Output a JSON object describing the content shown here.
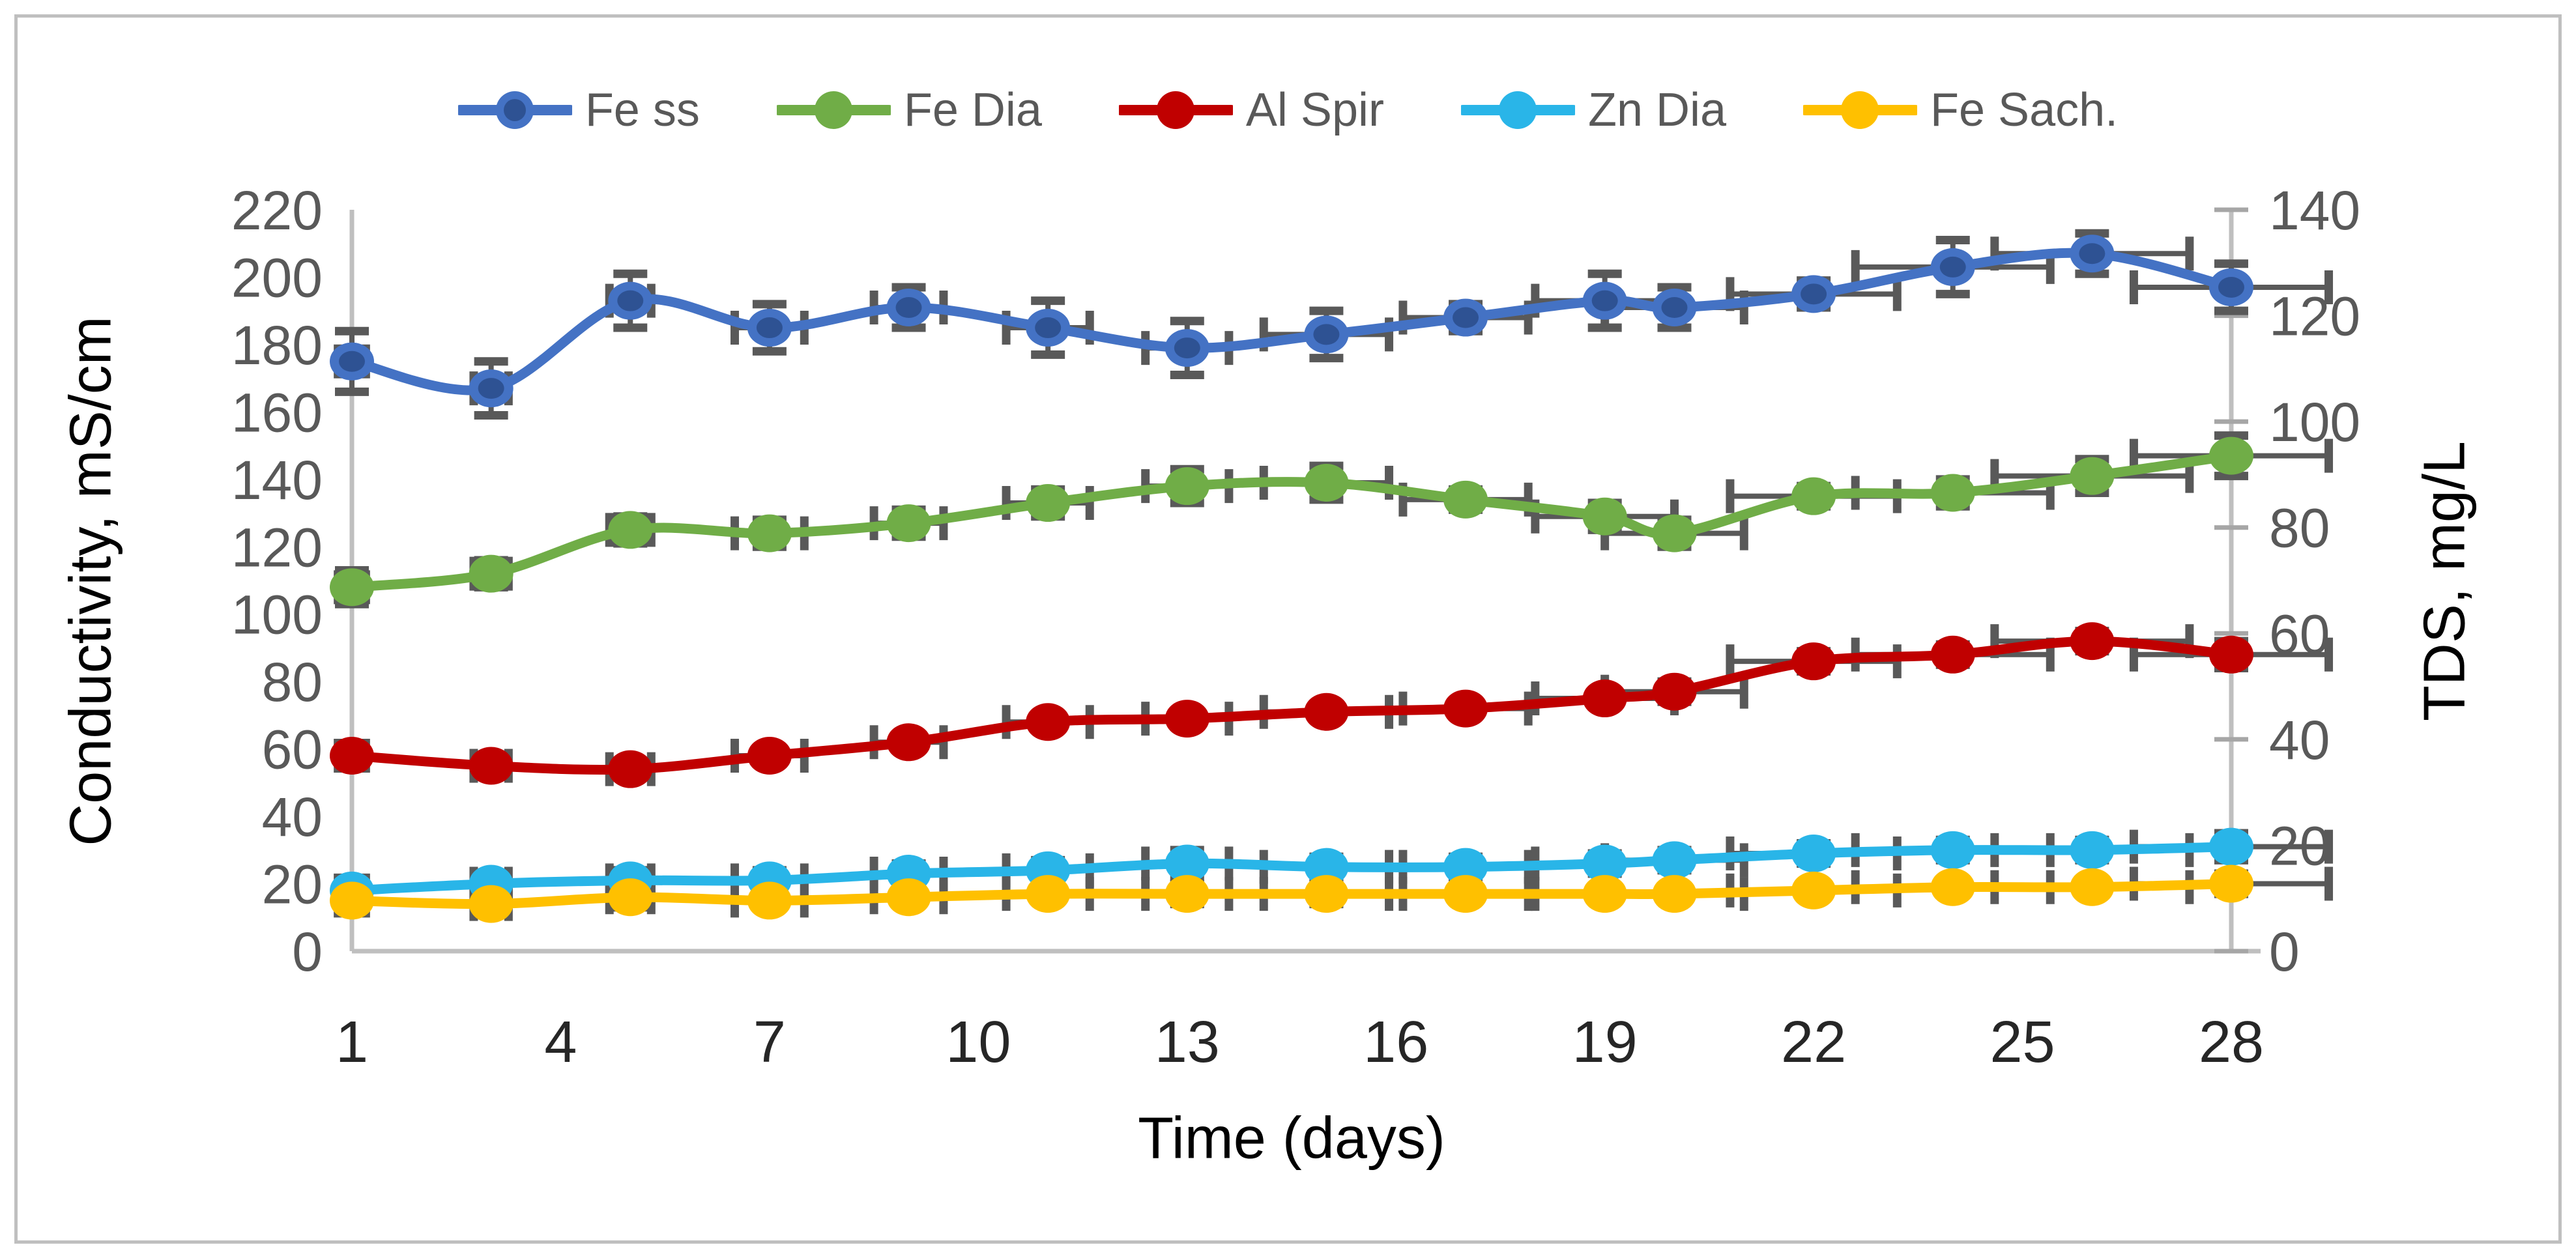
{
  "figure": {
    "background_color": "#ffffff",
    "border_color": "#bfbfbf"
  },
  "chart_data": {
    "type": "line",
    "xlabel": "Time (days)",
    "ylabel_left": "Conductivity, mS/cm",
    "ylabel_right": "TDS, mg/L",
    "xlim": [
      1,
      28
    ],
    "ylim_left": [
      0,
      220
    ],
    "ylim_right": [
      0,
      140
    ],
    "x_ticks": [
      1,
      4,
      7,
      10,
      13,
      16,
      19,
      22,
      25,
      28
    ],
    "y_left_ticks": [
      0,
      20,
      40,
      60,
      80,
      100,
      120,
      140,
      160,
      180,
      200,
      220
    ],
    "y_right_ticks": [
      0,
      20,
      40,
      60,
      80,
      100,
      120,
      140
    ],
    "grid": false,
    "legend_position": "top",
    "x": [
      1,
      3,
      5,
      7,
      9,
      11,
      13,
      15,
      17,
      19,
      20,
      22,
      24,
      26,
      28
    ],
    "xerr_days": [
      0.2,
      0.25,
      0.3,
      0.5,
      0.5,
      0.6,
      0.6,
      0.9,
      0.9,
      1.0,
      1.0,
      1.2,
      1.4,
      1.4,
      1.4
    ],
    "series": [
      {
        "name": "Fe ss",
        "color": "#4472C4",
        "marker_inner": "#2E5293",
        "values": [
          175,
          167,
          193,
          185,
          191,
          185,
          179,
          183,
          188,
          193,
          191,
          195,
          203,
          207,
          197
        ],
        "yerr": [
          9,
          8,
          8,
          7,
          6,
          8,
          8,
          7,
          4,
          8,
          6,
          4,
          8,
          6,
          7
        ]
      },
      {
        "name": "Fe Dia",
        "color": "#70AD47",
        "marker_inner": null,
        "values": [
          108,
          112,
          125,
          124,
          127,
          133,
          138,
          139,
          134,
          129,
          124,
          135,
          136,
          141,
          147
        ],
        "yerr": [
          5,
          4,
          4,
          4,
          4,
          4,
          5,
          5,
          3,
          4,
          4,
          3,
          4,
          5,
          6
        ]
      },
      {
        "name": "Al Spir",
        "color": "#C00000",
        "marker_inner": null,
        "values": [
          58,
          55,
          54,
          58,
          62,
          68,
          69,
          71,
          72,
          75,
          77,
          86,
          88,
          92,
          88
        ],
        "yerr": [
          2,
          2,
          2,
          2,
          2,
          2,
          2,
          2,
          2,
          2,
          3,
          3,
          3,
          3,
          4
        ]
      },
      {
        "name": "Zn Dia",
        "color": "#29B5E8",
        "marker_inner": null,
        "values": [
          18,
          20,
          21,
          21,
          23,
          24,
          26,
          25,
          25,
          26,
          27,
          29,
          30,
          30,
          31
        ],
        "yerr": [
          3,
          3,
          3,
          3,
          3,
          3,
          4,
          3,
          3,
          3,
          3,
          3,
          3,
          3,
          4
        ]
      },
      {
        "name": "Fe Sach.",
        "color": "#FFC000",
        "marker_inner": null,
        "values": [
          15,
          14,
          16,
          15,
          16,
          17,
          17,
          17,
          17,
          17,
          17,
          18,
          19,
          19,
          20
        ],
        "yerr": [
          2,
          2,
          3,
          2,
          2,
          2,
          3,
          3,
          2,
          2,
          2,
          2,
          2,
          2,
          3
        ]
      }
    ],
    "error_bar_color": "#595959",
    "axis_line_color": "#BFBFBF",
    "right_tick_color": "#A6A6A6",
    "y_tick_label_color": "#595959",
    "x_tick_label_color": "#262626",
    "legend_text_color": "#595959"
  }
}
